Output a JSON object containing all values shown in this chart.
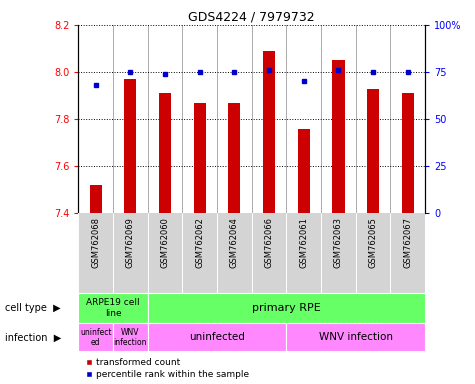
{
  "title": "GDS4224 / 7979732",
  "samples": [
    "GSM762068",
    "GSM762069",
    "GSM762060",
    "GSM762062",
    "GSM762064",
    "GSM762066",
    "GSM762061",
    "GSM762063",
    "GSM762065",
    "GSM762067"
  ],
  "transformed_count": [
    7.52,
    7.97,
    7.91,
    7.87,
    7.87,
    8.09,
    7.76,
    8.05,
    7.93,
    7.91
  ],
  "percentile_rank": [
    68,
    75,
    74,
    75,
    75,
    76,
    70,
    76,
    75,
    75
  ],
  "ylim": [
    7.4,
    8.2
  ],
  "yticks": [
    7.4,
    7.6,
    7.8,
    8.0,
    8.2
  ],
  "y2lim": [
    0,
    100
  ],
  "y2ticks": [
    0,
    25,
    50,
    75,
    100
  ],
  "y2labels": [
    "0",
    "25",
    "50",
    "75",
    "100%"
  ],
  "bar_color": "#cc0000",
  "dot_color": "#0000cc",
  "sample_bg": "#d4d4d4",
  "cell_type_color": "#66ff66",
  "infection_color": "#ff88ff",
  "cell_type_segments": [
    {
      "label": "ARPE19 cell\nline",
      "start": 0,
      "end": 2
    },
    {
      "label": "primary RPE",
      "start": 2,
      "end": 10
    }
  ],
  "infection_segments": [
    {
      "label": "uninfect\ned",
      "start": 0,
      "end": 1,
      "small": true
    },
    {
      "label": "WNV\ninfection",
      "start": 1,
      "end": 2,
      "small": true
    },
    {
      "label": "uninfected",
      "start": 2,
      "end": 6,
      "small": false
    },
    {
      "label": "WNV infection",
      "start": 6,
      "end": 10,
      "small": false
    }
  ],
  "legend_items": [
    {
      "color": "#cc0000",
      "label": "transformed count"
    },
    {
      "color": "#0000cc",
      "label": "percentile rank within the sample"
    }
  ],
  "bar_width": 0.35,
  "background_color": "#ffffff"
}
